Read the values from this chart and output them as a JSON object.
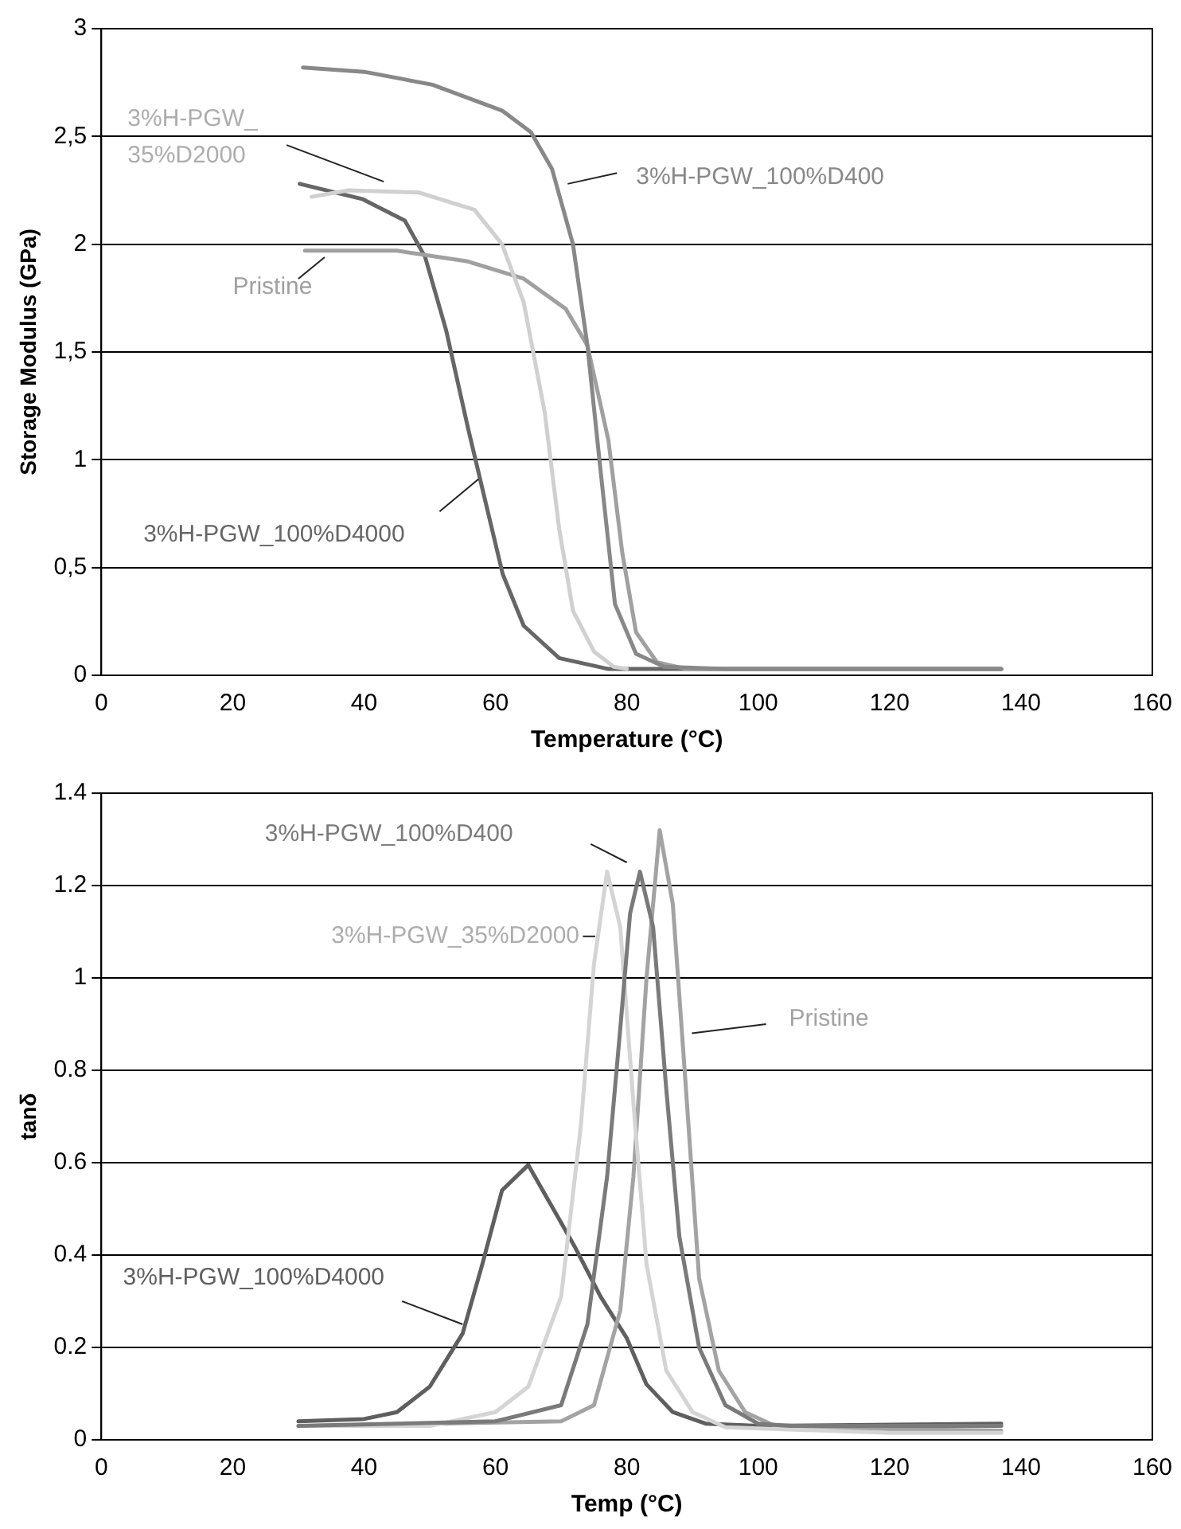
{
  "chart_data": [
    {
      "type": "line",
      "xlabel": "Temperature (°C)",
      "ylabel": "Storage Modulus (GPa)",
      "xlim": [
        0,
        160
      ],
      "xticks": [
        0,
        20,
        40,
        60,
        80,
        100,
        120,
        140,
        160
      ],
      "ylim": [
        0,
        3
      ],
      "yticks": [
        0,
        {
          "value": 0.5,
          "label": "0,5"
        },
        1,
        {
          "value": 1.5,
          "label": "1,5"
        },
        2,
        {
          "value": 2.5,
          "label": "2,5"
        },
        3
      ],
      "grid": "y",
      "marker": "none",
      "line_style": "solid",
      "series": [
        {
          "name": "3%H-PGW_100%D400",
          "color": "#888888",
          "x": [
            30.7,
            40,
            50.4,
            61,
            65.4,
            68.6,
            71.8,
            74,
            76,
            78.2,
            81.4,
            85.7,
            95,
            137
          ],
          "values": [
            2.82,
            2.8,
            2.74,
            2.62,
            2.52,
            2.35,
            2,
            1.53,
            0.95,
            0.33,
            0.1,
            0.04,
            0.03,
            0.03
          ]
        },
        {
          "name": "3%H-PGW_35%D2000",
          "color": "#d0d0d0",
          "x": [
            32,
            37.6,
            48.3,
            56.8,
            61,
            64.3,
            67.5,
            69.7,
            71.8,
            75,
            78,
            80
          ],
          "values": [
            2.22,
            2.25,
            2.24,
            2.16,
            2,
            1.73,
            1.22,
            0.68,
            0.3,
            0.11,
            0.04,
            0.03
          ]
        },
        {
          "name": "Pristine",
          "color": "#a0a0a0",
          "x": [
            31,
            45,
            55.8,
            64.3,
            70.7,
            74,
            77.2,
            79.3,
            81.4,
            84.6,
            89,
            137
          ],
          "values": [
            1.97,
            1.97,
            1.92,
            1.84,
            1.7,
            1.53,
            1.09,
            0.57,
            0.2,
            0.06,
            0.03,
            0.03
          ]
        },
        {
          "name": "3%H-PGW_100%D4000",
          "color": "#666666",
          "x": [
            30.2,
            39.7,
            46.2,
            49.3,
            52.5,
            55.8,
            57.9,
            61.1,
            64.3,
            69.7,
            77.1,
            137
          ],
          "values": [
            2.28,
            2.21,
            2.11,
            1.94,
            1.6,
            1.15,
            0.88,
            0.47,
            0.23,
            0.08,
            0.03,
            0.03
          ]
        }
      ]
    },
    {
      "type": "line",
      "xlabel": "Temp (°C)",
      "ylabel": "tanδ",
      "xlim": [
        0,
        160
      ],
      "xticks": [
        0,
        20,
        40,
        60,
        80,
        100,
        120,
        140,
        160
      ],
      "ylim": [
        0,
        1.4
      ],
      "yticks": [
        0,
        0.2,
        0.4,
        0.6,
        0.8,
        1,
        1.2,
        1.4
      ],
      "grid": "y",
      "marker": "none",
      "line_style": "solid",
      "series": [
        {
          "name": "3%H-PGW_100%D400",
          "color": "#7a7a7a",
          "x": [
            30,
            60,
            70,
            74,
            77,
            79,
            80.5,
            82,
            84,
            86,
            88,
            91,
            95,
            100,
            105,
            137
          ],
          "values": [
            0.03,
            0.04,
            0.075,
            0.25,
            0.57,
            0.89,
            1.14,
            1.23,
            1.11,
            0.76,
            0.44,
            0.2,
            0.075,
            0.035,
            0.03,
            0.03
          ]
        },
        {
          "name": "3%H-PGW_35%D2000",
          "color": "#d4d4d4",
          "x": [
            30,
            50,
            60,
            65,
            70,
            73,
            75,
            77,
            79,
            81,
            83,
            86,
            90,
            95,
            120,
            137
          ],
          "values": [
            0.03,
            0.03,
            0.06,
            0.115,
            0.31,
            0.68,
            1.03,
            1.23,
            1.11,
            0.73,
            0.38,
            0.15,
            0.06,
            0.027,
            0.015,
            0.015
          ]
        },
        {
          "name": "Pristine",
          "color": "#a3a3a3",
          "x": [
            32,
            70,
            75,
            79,
            81,
            83,
            85,
            87,
            89,
            91,
            94,
            98,
            103,
            137
          ],
          "values": [
            0.03,
            0.04,
            0.075,
            0.28,
            0.57,
            1,
            1.32,
            1.16,
            0.76,
            0.35,
            0.15,
            0.06,
            0.027,
            0.02
          ]
        },
        {
          "name": "3%H-PGW_100%D4000",
          "color": "#5f5f5f",
          "x": [
            30,
            40,
            45,
            50,
            55,
            58,
            61,
            65,
            68,
            72,
            76,
            80,
            83,
            87,
            92,
            100,
            137
          ],
          "values": [
            0.04,
            0.045,
            0.06,
            0.115,
            0.23,
            0.38,
            0.54,
            0.595,
            0.52,
            0.42,
            0.31,
            0.22,
            0.12,
            0.06,
            0.035,
            0.03,
            0.035
          ]
        }
      ]
    }
  ]
}
